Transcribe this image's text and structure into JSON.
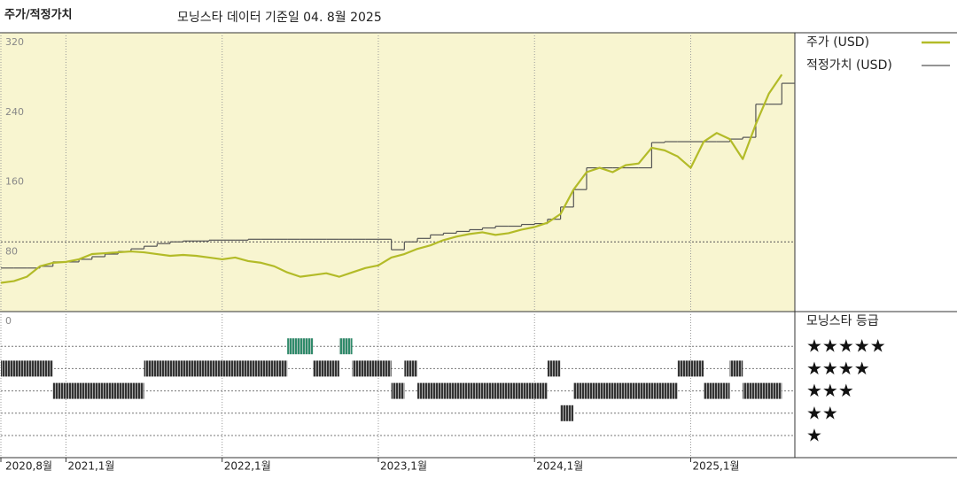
{
  "chart_data": {
    "type": "line",
    "title": "주가/적정가치",
    "subtitle": "모닝스타 데이터 기준일 04. 8월 2025",
    "x": [
      "2020-08",
      "2020-09",
      "2020-10",
      "2020-11",
      "2020-12",
      "2021-01",
      "2021-02",
      "2021-03",
      "2021-04",
      "2021-05",
      "2021-06",
      "2021-07",
      "2021-08",
      "2021-09",
      "2021-10",
      "2021-11",
      "2021-12",
      "2022-01",
      "2022-02",
      "2022-03",
      "2022-04",
      "2022-05",
      "2022-06",
      "2022-07",
      "2022-08",
      "2022-09",
      "2022-10",
      "2022-11",
      "2022-12",
      "2023-01",
      "2023-02",
      "2023-03",
      "2023-04",
      "2023-05",
      "2023-06",
      "2023-07",
      "2023-08",
      "2023-09",
      "2023-10",
      "2023-11",
      "2023-12",
      "2024-01",
      "2024-02",
      "2024-03",
      "2024-04",
      "2024-05",
      "2024-06",
      "2024-07",
      "2024-08",
      "2024-09",
      "2024-10",
      "2024-11",
      "2024-12",
      "2025-01",
      "2025-02",
      "2025-03",
      "2025-04",
      "2025-05",
      "2025-06",
      "2025-07",
      "2025-08"
    ],
    "series": [
      {
        "name": "주가 (USD)",
        "color": "#b3bb28",
        "style": "line",
        "values": [
          33,
          35,
          40,
          52,
          56,
          57,
          60,
          66,
          67,
          68,
          69,
          68,
          66,
          64,
          65,
          64,
          62,
          60,
          62,
          58,
          56,
          52,
          45,
          40,
          42,
          44,
          40,
          45,
          50,
          53,
          62,
          66,
          72,
          76,
          82,
          86,
          89,
          91,
          88,
          90,
          94,
          97,
          102,
          112,
          140,
          160,
          165,
          160,
          168,
          170,
          188,
          185,
          178,
          165,
          195,
          205,
          198,
          175,
          215,
          250,
          272
        ]
      },
      {
        "name": "적정가치 (USD)",
        "color": "#555555",
        "style": "step",
        "values": [
          50,
          50,
          50,
          52,
          57,
          57,
          60,
          63,
          66,
          69,
          72,
          75,
          78,
          80,
          81,
          81,
          82,
          82,
          82,
          83,
          83,
          83,
          83,
          83,
          83,
          83,
          83,
          83,
          83,
          83,
          71,
          80,
          84,
          88,
          90,
          92,
          94,
          96,
          98,
          98,
          100,
          101,
          106,
          120,
          140,
          165,
          165,
          165,
          165,
          165,
          194,
          195,
          195,
          195,
          195,
          195,
          198,
          200,
          238,
          238,
          262
        ]
      }
    ],
    "xlim": [
      "2020-08",
      "2025-09"
    ],
    "xticks": [
      {
        "value": "2020-08",
        "label": "2020,8월"
      },
      {
        "value": "2021-01",
        "label": "2021,1월"
      },
      {
        "value": "2022-01",
        "label": "2022,1월"
      },
      {
        "value": "2023-01",
        "label": "2023,1월"
      },
      {
        "value": "2024-01",
        "label": "2024,1월"
      },
      {
        "value": "2025-01",
        "label": "2025,1월"
      }
    ],
    "ylim": [
      0,
      320
    ],
    "yticks": [
      0,
      80,
      160,
      240,
      320
    ],
    "hlines": [
      80
    ],
    "plot_background": "#f8f5d0",
    "rating_title": "모닝스타 등급",
    "rating_rows": [
      {
        "rating": 5,
        "label": "★★★★★"
      },
      {
        "rating": 4,
        "label": "★★★★"
      },
      {
        "rating": 3,
        "label": "★★★"
      },
      {
        "rating": 2,
        "label": "★★"
      },
      {
        "rating": 1,
        "label": "★"
      }
    ],
    "rating_colors": {
      "5": "#2f8a6a",
      "4": "#333333",
      "3": "#333333",
      "2": "#333333",
      "1": "#333333"
    },
    "rating_periods": [
      {
        "start": "2020-08",
        "end": "2020-12",
        "rating": 4
      },
      {
        "start": "2020-12",
        "end": "2021-07",
        "rating": 3
      },
      {
        "start": "2021-07",
        "end": "2022-06",
        "rating": 4
      },
      {
        "start": "2022-06",
        "end": "2022-08",
        "rating": 5
      },
      {
        "start": "2022-08",
        "end": "2022-10",
        "rating": 4
      },
      {
        "start": "2022-10",
        "end": "2022-11",
        "rating": 5
      },
      {
        "start": "2022-11",
        "end": "2023-02",
        "rating": 4
      },
      {
        "start": "2023-02",
        "end": "2023-03",
        "rating": 3
      },
      {
        "start": "2023-03",
        "end": "2023-04",
        "rating": 4
      },
      {
        "start": "2023-04",
        "end": "2024-02",
        "rating": 3
      },
      {
        "start": "2024-02",
        "end": "2024-03",
        "rating": 4
      },
      {
        "start": "2024-03",
        "end": "2024-04",
        "rating": 2
      },
      {
        "start": "2024-04",
        "end": "2024-12",
        "rating": 3
      },
      {
        "start": "2024-12",
        "end": "2025-02",
        "rating": 4
      },
      {
        "start": "2025-02",
        "end": "2025-04",
        "rating": 3
      },
      {
        "start": "2025-04",
        "end": "2025-05",
        "rating": 4
      },
      {
        "start": "2025-05",
        "end": "2025-08",
        "rating": 3
      }
    ]
  }
}
